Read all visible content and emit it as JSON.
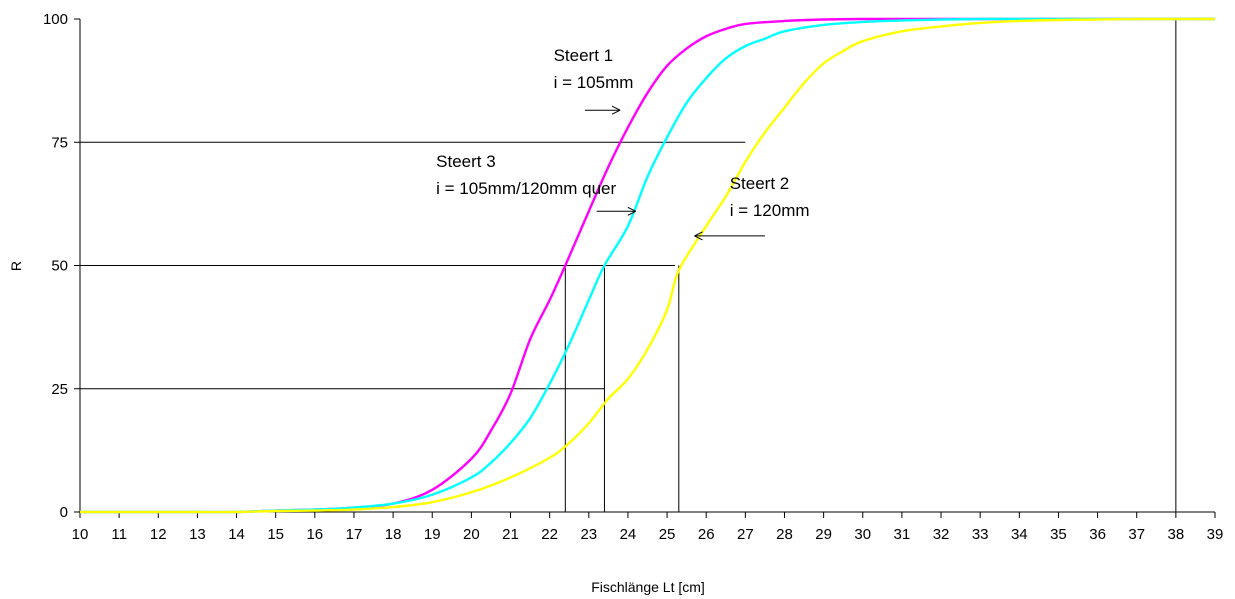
{
  "chart_data": {
    "type": "line",
    "xlabel": "Fischlänge Lt [cm]",
    "ylabel": "R",
    "xlim": [
      10,
      39
    ],
    "ylim": [
      0,
      100
    ],
    "x_ticks": [
      "10",
      "11",
      "12",
      "13",
      "14",
      "15",
      "16",
      "17",
      "18",
      "19",
      "20",
      "21",
      "22",
      "23",
      "24",
      "25",
      "26",
      "27",
      "28",
      "29",
      "30",
      "31",
      "32",
      "33",
      "34",
      "35",
      "36",
      "37",
      "38",
      "39"
    ],
    "y_ticks": [
      "0",
      "25",
      "50",
      "75",
      "100"
    ],
    "grid": false,
    "colors": {
      "steert1": "#ff00ff",
      "steert2": "#ffff00",
      "steert3": "#00ffff",
      "reference_lines": "#000000"
    },
    "series": [
      {
        "key": "steert1",
        "x": [
          10,
          11,
          12,
          13,
          14,
          15,
          16,
          17,
          18,
          19,
          20,
          20.5,
          21,
          21.5,
          22,
          22.4,
          23,
          23.5,
          24,
          24.5,
          25,
          25.5,
          26,
          26.5,
          27,
          28,
          29,
          30,
          31,
          32,
          33,
          34,
          35,
          36,
          37,
          38,
          39
        ],
        "y": [
          0,
          0,
          0,
          0,
          0,
          0.3,
          0.5,
          0.9,
          1.7,
          4.5,
          10.8,
          16.5,
          24,
          35,
          43,
          50,
          61,
          70,
          78,
          85,
          90.5,
          94,
          96.5,
          98,
          99,
          99.6,
          99.9,
          100,
          100,
          100,
          100,
          100,
          100,
          100,
          100,
          100,
          100
        ]
      },
      {
        "key": "steert3",
        "x": [
          10,
          11,
          12,
          13,
          14,
          15,
          16,
          17,
          18,
          19,
          20,
          20.5,
          21,
          21.5,
          22,
          22.5,
          23,
          23.4,
          24,
          24.5,
          25,
          25.5,
          26,
          26.5,
          27,
          27.5,
          28,
          29,
          30,
          31,
          32,
          33,
          34,
          35,
          36,
          37,
          38,
          39
        ],
        "y": [
          0,
          0,
          0,
          0,
          0,
          0.3,
          0.5,
          0.9,
          1.7,
          3.5,
          7,
          10,
          14,
          19,
          26,
          34,
          43,
          50,
          58,
          68,
          76,
          83,
          88,
          92,
          94.5,
          96,
          97.5,
          98.8,
          99.4,
          99.7,
          99.9,
          100,
          100,
          100,
          100,
          100,
          100,
          100
        ]
      },
      {
        "key": "steert2",
        "x": [
          10,
          11,
          12,
          13,
          14,
          15,
          16,
          17,
          18,
          19,
          20,
          21,
          22,
          22.5,
          23,
          23.5,
          24,
          24.5,
          25,
          25.3,
          26,
          26.5,
          27,
          27.5,
          28,
          28.5,
          29,
          29.5,
          30,
          31,
          32,
          33,
          34,
          35,
          36,
          37,
          38,
          39
        ],
        "y": [
          0,
          0,
          0,
          0,
          0,
          0.2,
          0.3,
          0.5,
          1,
          2,
          4,
          7,
          11,
          14,
          18,
          23,
          27,
          33,
          41,
          49,
          58,
          64,
          71,
          77,
          82,
          87,
          91,
          93.5,
          95.5,
          97.5,
          98.5,
          99.2,
          99.6,
          99.8,
          99.9,
          100,
          100,
          100
        ]
      }
    ],
    "reference_lines": {
      "horizontal": [
        {
          "y": 75,
          "x_from": 10,
          "x_to": 27
        },
        {
          "y": 50,
          "x_from": 10,
          "x_to": 25.2
        },
        {
          "y": 25,
          "x_from": 10,
          "x_to": 23.4
        }
      ],
      "vertical": [
        {
          "x": 22.4,
          "y_from": 0,
          "y_to": 50
        },
        {
          "x": 23.4,
          "y_from": 0,
          "y_to": 50
        },
        {
          "x": 25.3,
          "y_from": 0,
          "y_to": 50
        },
        {
          "x": 38,
          "y_from": 0,
          "y_to": 100
        }
      ]
    },
    "annotations": [
      {
        "key": "steert1",
        "lines": [
          "Steert 1",
          "i = 105mm"
        ],
        "text_x": 22.1,
        "text_y": 91.5,
        "arrow_from": [
          22.9,
          81.5
        ],
        "arrow_to": [
          23.8,
          81.5
        ]
      },
      {
        "key": "steert3",
        "lines": [
          "Steert 3",
          "i = 105mm/120mm quer"
        ],
        "text_x": 19.1,
        "text_y": 70,
        "arrow_from": [
          23.2,
          61
        ],
        "arrow_to": [
          24.2,
          61
        ]
      },
      {
        "key": "steert2",
        "lines": [
          "Steert 2",
          "i = 120mm"
        ],
        "text_x": 26.6,
        "text_y": 65.5,
        "arrow_from": [
          27.5,
          56
        ],
        "arrow_to": [
          25.7,
          56
        ]
      }
    ]
  }
}
